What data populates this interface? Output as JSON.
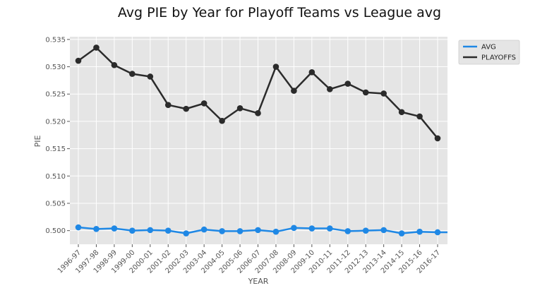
{
  "chart_data": {
    "type": "line",
    "title": "Avg PIE by Year for Playoff Teams vs League avg",
    "xlabel": "YEAR",
    "ylabel": "PIE",
    "ylim": [
      0.4975,
      0.5355
    ],
    "yticks": [
      "0.500",
      "0.505",
      "0.510",
      "0.515",
      "0.520",
      "0.525",
      "0.530",
      "0.535"
    ],
    "grid": true,
    "legend_position": "top-right outside",
    "categories": [
      "1996-97",
      "1997-98",
      "1998-99",
      "1999-00",
      "2000-01",
      "2001-02",
      "2002-03",
      "2003-04",
      "2004-05",
      "2005-06",
      "2006-07",
      "2007-08",
      "2008-09",
      "2009-10",
      "2010-11",
      "2011-12",
      "2012-13",
      "2013-14",
      "2014-15",
      "2015-16",
      "2016-17"
    ],
    "series": [
      {
        "name": "AVG",
        "color": "#1f88e5",
        "values": [
          0.5006,
          0.5003,
          0.5004,
          0.5,
          0.5001,
          0.5,
          0.4995,
          0.5002,
          0.4999,
          0.4999,
          0.5001,
          0.4998,
          0.5005,
          0.5004,
          0.5004,
          0.4999,
          0.5,
          0.5001,
          0.4995,
          0.4998,
          0.4997
        ]
      },
      {
        "name": "PLAYOFFS",
        "color": "#2b2b2b",
        "values": [
          0.5311,
          0.5335,
          0.5303,
          0.5287,
          0.5282,
          0.523,
          0.5223,
          0.5233,
          0.5201,
          0.5224,
          0.5215,
          0.53,
          0.5256,
          0.529,
          0.5259,
          0.5269,
          0.5253,
          0.5251,
          0.5217,
          0.5209,
          0.5169
        ]
      }
    ]
  }
}
